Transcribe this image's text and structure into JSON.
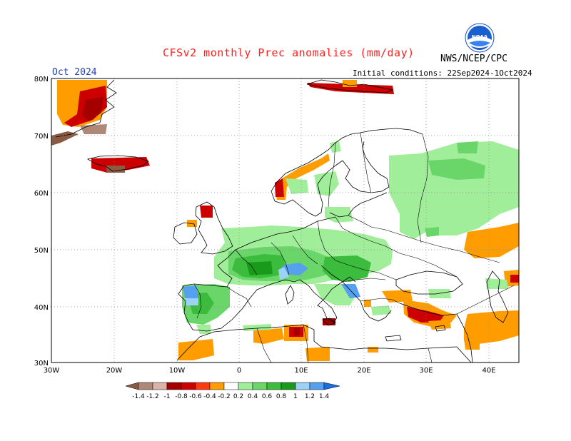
{
  "title": "CFSv2 monthly Prec anomalies (mm/day)",
  "agency": "NWS/NCEP/CPC",
  "logo_text": "NOAA",
  "month": "Oct 2024",
  "initial_conditions": "Initial conditions: 22Sep2024-1Oct2024",
  "lat_labels": [
    "80N",
    "70N",
    "60N",
    "50N",
    "40N",
    "30N"
  ],
  "lon_labels": [
    "30W",
    "20W",
    "10W",
    "0",
    "10E",
    "20E",
    "30E",
    "40E"
  ],
  "legend": {
    "colors": [
      "#8b5a42",
      "#b08878",
      "#d8b4a8",
      "#a50000",
      "#cc0000",
      "#ff3b10",
      "#ff9d00",
      "#ffffff",
      "#a0ee9a",
      "#6ad66a",
      "#3cbc3c",
      "#1a9a1a",
      "#9ed2f5",
      "#56a0f0",
      "#1e6ee0"
    ],
    "labels": [
      "-1.4",
      "-1.2",
      "-1",
      "-0.8",
      "-0.6",
      "-0.4",
      "-0.2",
      "0.2",
      "0.4",
      "0.6",
      "0.8",
      "1",
      "1.2",
      "1.4"
    ]
  }
}
